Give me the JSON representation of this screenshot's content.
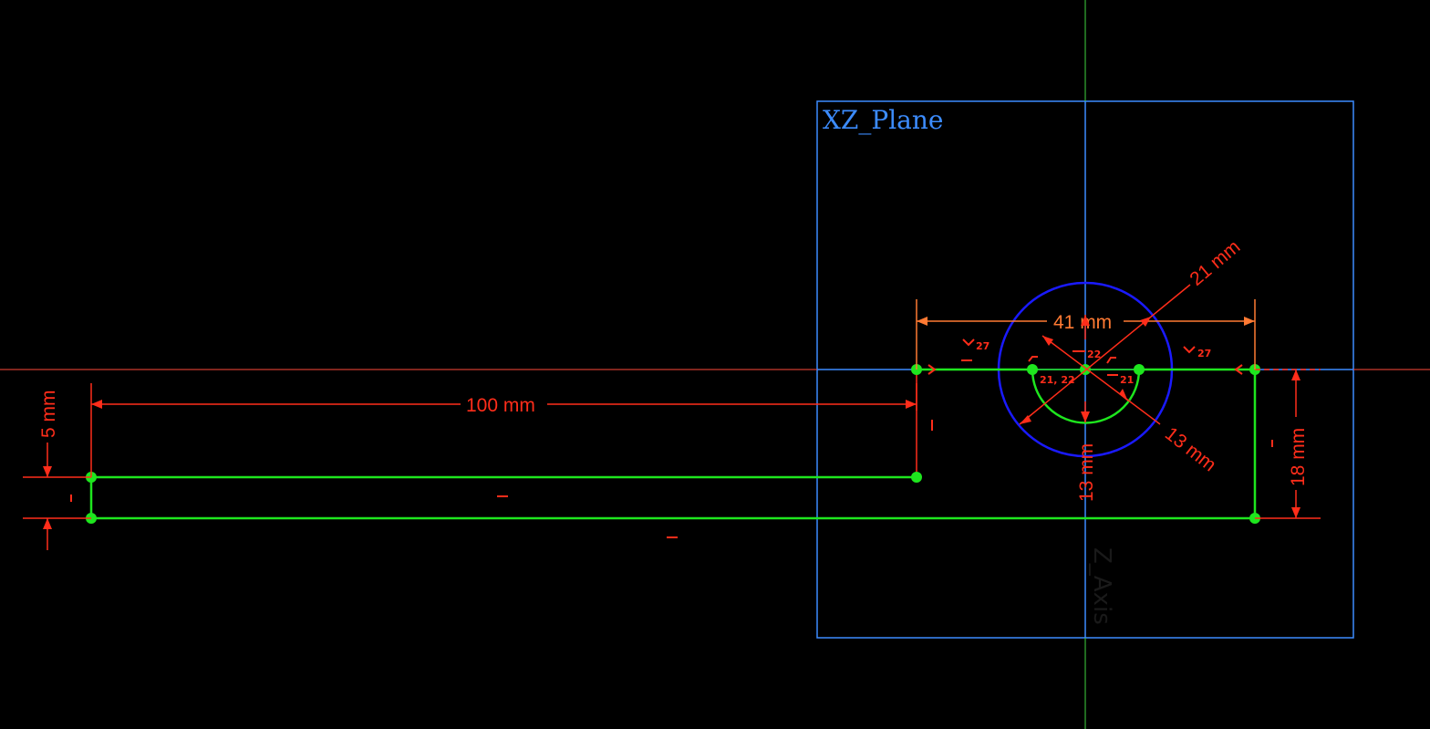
{
  "viewport": {
    "background": "#000000",
    "plane": {
      "label": "XZ_Plane",
      "color": "#3c8cff"
    },
    "axes": {
      "horizontal_color": "#ff4a3a",
      "vertical_color": "#3fd43f",
      "vertical_axis_label": "Z_Axis",
      "vertical_axis_label_color": "#1a1a1a"
    }
  },
  "colors": {
    "geometry": "#1ee61e",
    "vertex": "#1ee61e",
    "construction": "#1a1aff",
    "dimension": "#ff2d1a",
    "dimension_alt": "#ff7a33",
    "constraint": "#ff2d1a"
  },
  "dimensions": {
    "length_100": "100 mm",
    "width_41": "41 mm",
    "radius_21": "21 mm",
    "radius_13": "13 mm",
    "vertical_13": "13 mm",
    "height_18": "18 mm",
    "height_5": "5 mm"
  },
  "constraints": {
    "c27_left": "27",
    "c27_right": "27",
    "c22": "22",
    "c21_22": "21, 22",
    "c21": "21"
  }
}
